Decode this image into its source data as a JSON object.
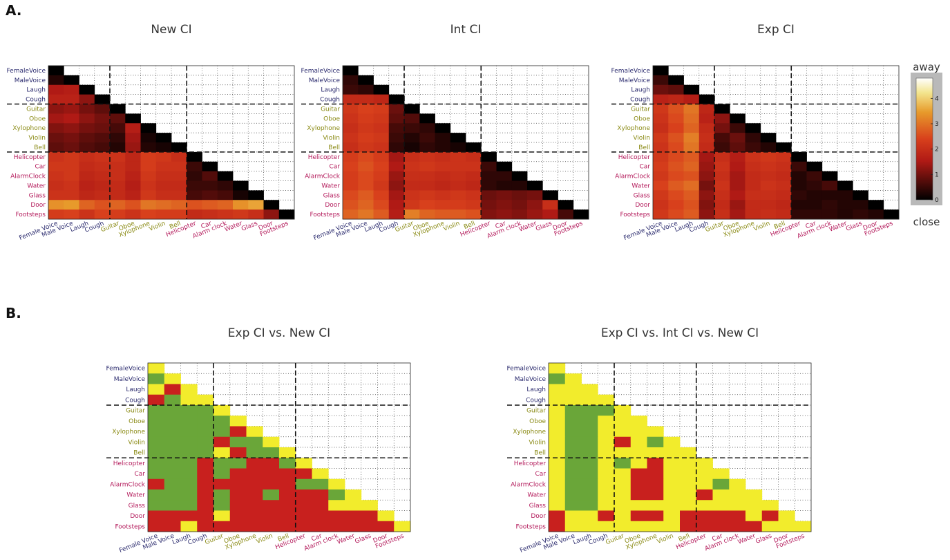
{
  "panels": {
    "a": "A.",
    "b": "B."
  },
  "colors": {
    "voice": "#2b2b6e",
    "music": "#8a8a14",
    "env": "#b3195a",
    "b_high": "#f2ec2c",
    "b_mid": "#6aa639",
    "b_low": "#c8201e"
  },
  "colorbar": {
    "top_label": "away",
    "bottom_label": "close",
    "ticks": [
      "0",
      "1",
      "2",
      "3",
      "4"
    ],
    "range": [
      0,
      4.8
    ]
  },
  "chart_data": [
    {
      "type": "heatmap",
      "title": "New CI",
      "row_labels": [
        "FemaleVoice",
        "MaleVoice",
        "Laugh",
        "Cough",
        "Guitar",
        "Oboe",
        "Xylophone",
        "Violin",
        "Bell",
        "Helicopter",
        "Car",
        "AlarmClock",
        "Water",
        "Glass",
        "Door",
        "Footsteps"
      ],
      "col_labels": [
        "Female Voice",
        "Male Voice",
        "Laugh",
        "Cough",
        "Guitar",
        "Oboe",
        "Xylophone",
        "Violin",
        "Bell",
        "Helicopter",
        "Car",
        "Alarm clock",
        "Water",
        "Glass",
        "Door",
        "Footsteps"
      ],
      "groups": [
        "voice",
        "voice",
        "voice",
        "voice",
        "music",
        "music",
        "music",
        "music",
        "music",
        "env",
        "env",
        "env",
        "env",
        "env",
        "env",
        "env"
      ],
      "values": [
        [
          0
        ],
        [
          0.3,
          0
        ],
        [
          1.5,
          1.6,
          0
        ],
        [
          1.7,
          1.7,
          1.2,
          0
        ],
        [
          1.2,
          1.3,
          1.0,
          0.8,
          0
        ],
        [
          1.4,
          1.5,
          1.2,
          1.0,
          0.8,
          0
        ],
        [
          1.1,
          1.2,
          1.0,
          0.9,
          0.6,
          1.6,
          0
        ],
        [
          0.9,
          1.0,
          0.8,
          0.7,
          0.4,
          1.4,
          0.2,
          0
        ],
        [
          0.8,
          0.9,
          0.7,
          0.6,
          0.3,
          1.3,
          0.3,
          0.2,
          0
        ],
        [
          2.1,
          2.2,
          2.0,
          2.1,
          2.1,
          1.8,
          2.3,
          2.2,
          2.0,
          0
        ],
        [
          2.2,
          2.2,
          1.9,
          2.0,
          2.0,
          1.8,
          2.3,
          2.1,
          2.1,
          0.5,
          0
        ],
        [
          2.1,
          2.2,
          1.8,
          1.9,
          2.0,
          1.7,
          2.2,
          2.0,
          2.0,
          0.4,
          0.7,
          0
        ],
        [
          2.0,
          2.1,
          1.7,
          1.8,
          1.9,
          1.6,
          2.1,
          1.9,
          1.9,
          0.5,
          0.5,
          0.4,
          0
        ],
        [
          2.1,
          2.1,
          1.8,
          1.9,
          1.9,
          1.7,
          2.2,
          2.0,
          2.0,
          0.6,
          0.7,
          0.6,
          0.2,
          0
        ],
        [
          3.3,
          3.4,
          2.8,
          2.6,
          2.8,
          2.6,
          3.0,
          2.9,
          2.8,
          2.6,
          2.7,
          2.8,
          3.3,
          3.5,
          0
        ],
        [
          2.3,
          2.4,
          2.1,
          2.4,
          2.3,
          2.1,
          2.4,
          2.3,
          2.3,
          1.9,
          2.0,
          2.1,
          2.2,
          2.0,
          1.2,
          0
        ]
      ]
    },
    {
      "type": "heatmap",
      "title": "Int CI",
      "row_labels": [
        "FemaleVoice",
        "MaleVoice",
        "Laugh",
        "Cough",
        "Guitar",
        "Oboe",
        "Xylophone",
        "Violin",
        "Bell",
        "Helicopter",
        "Car",
        "AlarmClock",
        "Water",
        "Glass",
        "Door",
        "Footsteps"
      ],
      "col_labels": [
        "Female Voice",
        "Male Voice",
        "Laugh",
        "Cough",
        "Guitar",
        "Oboe",
        "Xylophone",
        "Violin",
        "Bell",
        "Helicopter",
        "Car",
        "Alarm clock",
        "Water",
        "Glass",
        "Door",
        "Footsteps"
      ],
      "groups": [
        "voice",
        "voice",
        "voice",
        "voice",
        "music",
        "music",
        "music",
        "music",
        "music",
        "env",
        "env",
        "env",
        "env",
        "env",
        "env",
        "env"
      ],
      "values": [
        [
          0
        ],
        [
          0.4,
          0
        ],
        [
          0.5,
          0.4,
          0
        ],
        [
          1.9,
          1.9,
          1.8,
          0
        ],
        [
          2.2,
          2.4,
          2.3,
          0.9,
          0
        ],
        [
          2.1,
          2.3,
          2.2,
          0.8,
          0.7,
          0
        ],
        [
          2.0,
          2.2,
          2.1,
          0.6,
          0.5,
          0.4,
          0
        ],
        [
          2.1,
          2.3,
          2.2,
          0.5,
          0.3,
          0.5,
          0.3,
          0
        ],
        [
          2.0,
          2.2,
          2.1,
          0.4,
          0.2,
          0.4,
          0.3,
          0.2,
          0
        ],
        [
          2.3,
          2.5,
          2.3,
          1.4,
          2.0,
          2.1,
          2.0,
          2.1,
          2.0,
          0
        ],
        [
          2.4,
          2.6,
          2.4,
          1.5,
          2.1,
          2.2,
          2.1,
          2.1,
          2.1,
          0.5,
          0
        ],
        [
          2.3,
          2.5,
          2.3,
          1.3,
          2.0,
          2.0,
          1.9,
          2.0,
          1.9,
          0.4,
          0.4,
          0
        ],
        [
          2.3,
          2.5,
          2.2,
          1.2,
          1.9,
          1.9,
          1.8,
          1.9,
          1.8,
          0.4,
          0.3,
          0.3,
          0
        ],
        [
          2.5,
          2.7,
          2.4,
          1.4,
          2.1,
          2.2,
          2.1,
          2.2,
          2.1,
          0.9,
          1.0,
          0.9,
          1.0,
          0
        ],
        [
          2.6,
          2.8,
          2.5,
          1.5,
          2.2,
          2.4,
          2.3,
          2.3,
          2.2,
          1.0,
          1.1,
          1.0,
          1.2,
          2.0,
          0
        ],
        [
          2.8,
          3.0,
          2.7,
          1.6,
          3.1,
          2.8,
          2.7,
          2.7,
          2.6,
          1.1,
          1.2,
          1.1,
          1.3,
          1.5,
          0.6,
          0
        ]
      ]
    },
    {
      "type": "heatmap",
      "title": "Exp CI",
      "row_labels": [
        "FemaleVoice",
        "MaleVoice",
        "Laugh",
        "Cough",
        "Guitar",
        "Oboe",
        "Xylophone",
        "Violin",
        "Bell",
        "Helicopter",
        "Car",
        "AlarmClock",
        "Water",
        "Glass",
        "Door",
        "Footsteps"
      ],
      "col_labels": [
        "Female Voice",
        "Male Voice",
        "Laugh",
        "Cough",
        "Guitar",
        "Oboe",
        "Xylophone",
        "Violin",
        "Bell",
        "Helicopter",
        "Car",
        "Alarm clock",
        "Water",
        "Glass",
        "Door",
        "Footsteps"
      ],
      "groups": [
        "voice",
        "voice",
        "voice",
        "voice",
        "music",
        "music",
        "music",
        "music",
        "music",
        "env",
        "env",
        "env",
        "env",
        "env",
        "env",
        "env"
      ],
      "values": [
        [
          0
        ],
        [
          0.5,
          0
        ],
        [
          0.9,
          0.8,
          0
        ],
        [
          1.7,
          1.8,
          1.6,
          0
        ],
        [
          2.2,
          2.6,
          3.0,
          1.8,
          0
        ],
        [
          2.1,
          2.5,
          2.9,
          1.7,
          1.2,
          0
        ],
        [
          2.0,
          2.4,
          2.8,
          1.9,
          1.0,
          0.5,
          0
        ],
        [
          2.2,
          2.6,
          3.1,
          2.0,
          0.6,
          0.9,
          0.4,
          0
        ],
        [
          2.1,
          2.5,
          3.0,
          1.9,
          0.5,
          0.8,
          0.5,
          0.3,
          0
        ],
        [
          2.2,
          2.5,
          2.7,
          1.4,
          2.0,
          1.6,
          2.1,
          2.2,
          2.1,
          0
        ],
        [
          2.3,
          2.6,
          2.8,
          1.3,
          2.1,
          1.5,
          2.0,
          2.1,
          2.0,
          0.5,
          0
        ],
        [
          2.2,
          2.5,
          2.6,
          1.2,
          2.0,
          1.4,
          1.9,
          2.0,
          1.9,
          0.3,
          0.5,
          0
        ],
        [
          2.4,
          2.7,
          2.9,
          1.0,
          2.1,
          1.4,
          1.9,
          2.1,
          2.0,
          0.3,
          0.4,
          0.6,
          0
        ],
        [
          2.2,
          2.5,
          2.7,
          1.2,
          2.0,
          1.5,
          2.0,
          2.0,
          1.9,
          0.4,
          0.3,
          0.3,
          0.3,
          0
        ],
        [
          2.1,
          2.4,
          2.6,
          1.1,
          1.9,
          1.3,
          1.9,
          1.9,
          1.8,
          0.3,
          0.3,
          0.4,
          0.3,
          0.3,
          0
        ],
        [
          2.2,
          2.5,
          2.7,
          1.2,
          2.0,
          1.4,
          1.9,
          2.0,
          1.9,
          0.4,
          0.4,
          0.4,
          0.3,
          0.4,
          0.3,
          0
        ]
      ]
    },
    {
      "type": "heatmap",
      "title": "Exp CI vs. New CI",
      "row_labels": [
        "FemaleVoice",
        "MaleVoice",
        "Laugh",
        "Cough",
        "Guitar",
        "Oboe",
        "Xylophone",
        "Violin",
        "Bell",
        "Helicopter",
        "Car",
        "AlarmClock",
        "Water",
        "Glass",
        "Door",
        "Footsteps"
      ],
      "col_labels": [
        "Female Voice",
        "Male Voice",
        "Laugh",
        "Cough",
        "Guitar",
        "Oboe",
        "Xylophone",
        "Violin",
        "Bell",
        "Helicopter",
        "Car",
        "Alarm clock",
        "Water",
        "Glass",
        "Door",
        "Footsteps"
      ],
      "groups": [
        "voice",
        "voice",
        "voice",
        "voice",
        "music",
        "music",
        "music",
        "music",
        "music",
        "env",
        "env",
        "env",
        "env",
        "env",
        "env",
        "env"
      ],
      "categories": [
        "high",
        "mid",
        "low"
      ],
      "values": [
        [
          "high"
        ],
        [
          "mid",
          "high"
        ],
        [
          "high",
          "low",
          "high"
        ],
        [
          "low",
          "mid",
          "high",
          "high"
        ],
        [
          "mid",
          "mid",
          "mid",
          "mid",
          "high"
        ],
        [
          "mid",
          "mid",
          "mid",
          "mid",
          "mid",
          "high"
        ],
        [
          "mid",
          "mid",
          "mid",
          "mid",
          "mid",
          "low",
          "high"
        ],
        [
          "mid",
          "mid",
          "mid",
          "mid",
          "low",
          "mid",
          "mid",
          "high"
        ],
        [
          "mid",
          "mid",
          "mid",
          "mid",
          "high",
          "low",
          "mid",
          "mid",
          "high"
        ],
        [
          "mid",
          "mid",
          "mid",
          "low",
          "mid",
          "mid",
          "low",
          "low",
          "mid",
          "high"
        ],
        [
          "mid",
          "mid",
          "mid",
          "low",
          "mid",
          "low",
          "low",
          "low",
          "low",
          "low",
          "high"
        ],
        [
          "low",
          "mid",
          "mid",
          "low",
          "low",
          "low",
          "low",
          "low",
          "low",
          "mid",
          "mid",
          "high"
        ],
        [
          "mid",
          "mid",
          "mid",
          "low",
          "mid",
          "low",
          "low",
          "mid",
          "low",
          "low",
          "low",
          "mid",
          "high"
        ],
        [
          "mid",
          "mid",
          "mid",
          "low",
          "mid",
          "low",
          "low",
          "low",
          "low",
          "low",
          "low",
          "high",
          "high",
          "high"
        ],
        [
          "low",
          "low",
          "low",
          "low",
          "high",
          "low",
          "low",
          "low",
          "low",
          "low",
          "low",
          "low",
          "low",
          "low",
          "high"
        ],
        [
          "low",
          "low",
          "high",
          "low",
          "low",
          "low",
          "low",
          "low",
          "low",
          "low",
          "low",
          "low",
          "low",
          "low",
          "low",
          "high"
        ]
      ]
    },
    {
      "type": "heatmap",
      "title": "Exp CI vs. Int CI vs. New CI",
      "row_labels": [
        "FemaleVoice",
        "MaleVoice",
        "Laugh",
        "Cough",
        "Guitar",
        "Oboe",
        "Xylophone",
        "Violin",
        "Bell",
        "Helicopter",
        "Car",
        "AlarmClock",
        "Water",
        "Glass",
        "Door",
        "Footsteps"
      ],
      "col_labels": [
        "Female Voice",
        "Male Voice",
        "Laugh",
        "Cough",
        "Guitar",
        "Oboe",
        "Xylophone",
        "Violin",
        "Bell",
        "Helicopter",
        "Car",
        "Alarm clock",
        "Water",
        "Glass",
        "Door",
        "Footsteps"
      ],
      "groups": [
        "voice",
        "voice",
        "voice",
        "voice",
        "music",
        "music",
        "music",
        "music",
        "music",
        "env",
        "env",
        "env",
        "env",
        "env",
        "env",
        "env"
      ],
      "categories": [
        "high",
        "mid",
        "low"
      ],
      "values": [
        [
          "high"
        ],
        [
          "mid",
          "high"
        ],
        [
          "high",
          "high",
          "high"
        ],
        [
          "high",
          "high",
          "high",
          "high"
        ],
        [
          "high",
          "mid",
          "mid",
          "mid",
          "high"
        ],
        [
          "high",
          "mid",
          "mid",
          "high",
          "high",
          "high"
        ],
        [
          "high",
          "mid",
          "mid",
          "high",
          "high",
          "high",
          "high"
        ],
        [
          "high",
          "mid",
          "mid",
          "high",
          "low",
          "high",
          "mid",
          "high"
        ],
        [
          "high",
          "mid",
          "mid",
          "high",
          "high",
          "high",
          "high",
          "high",
          "high"
        ],
        [
          "high",
          "mid",
          "mid",
          "high",
          "mid",
          "high",
          "low",
          "high",
          "high",
          "high"
        ],
        [
          "high",
          "mid",
          "mid",
          "high",
          "high",
          "low",
          "low",
          "high",
          "high",
          "high",
          "high"
        ],
        [
          "high",
          "mid",
          "mid",
          "high",
          "high",
          "low",
          "low",
          "high",
          "high",
          "high",
          "mid",
          "high"
        ],
        [
          "high",
          "mid",
          "mid",
          "high",
          "high",
          "low",
          "low",
          "high",
          "high",
          "low",
          "high",
          "high",
          "high"
        ],
        [
          "high",
          "mid",
          "mid",
          "high",
          "high",
          "high",
          "high",
          "high",
          "high",
          "high",
          "high",
          "high",
          "high",
          "high"
        ],
        [
          "low",
          "high",
          "high",
          "low",
          "high",
          "low",
          "low",
          "high",
          "low",
          "low",
          "low",
          "low",
          "high",
          "low",
          "high"
        ],
        [
          "low",
          "high",
          "high",
          "high",
          "high",
          "high",
          "high",
          "high",
          "low",
          "low",
          "low",
          "low",
          "low",
          "high",
          "high",
          "high"
        ]
      ]
    }
  ]
}
